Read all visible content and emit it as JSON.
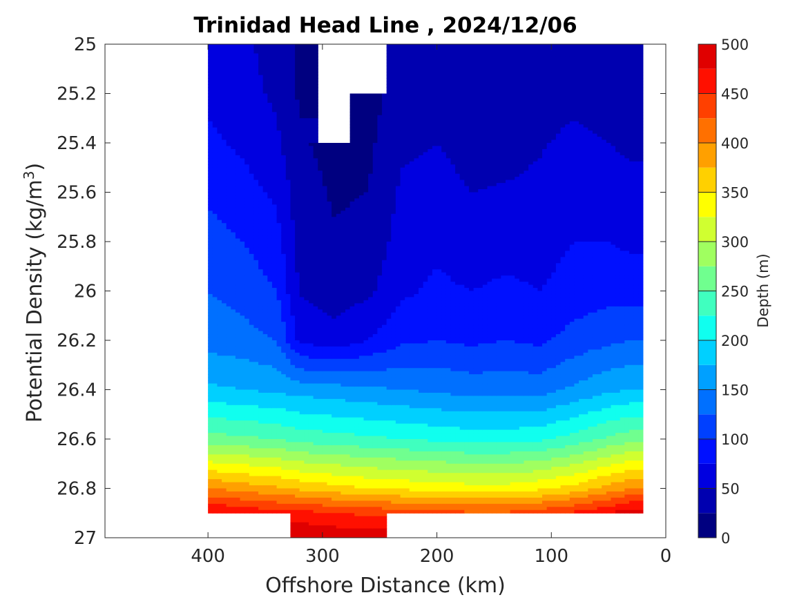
{
  "chart_data": {
    "type": "contour",
    "title": "Trinidad Head Line , 2024/12/06",
    "xlabel": "Offshore Distance (km)",
    "ylabel": "Potential Density (kg/m3)",
    "ylabel_base": "Potential Density (kg/m",
    "ylabel_sup": "3",
    "ylabel_tail": ")",
    "xlim": [
      490,
      0
    ],
    "x_reversed": true,
    "ylim": [
      25,
      27
    ],
    "y_reversed": true,
    "x_ticks": [
      400,
      300,
      200,
      100,
      0
    ],
    "x_tick_labels": [
      "400",
      "300",
      "200",
      "100",
      "0"
    ],
    "y_ticks": [
      25,
      25.2,
      25.4,
      25.6,
      25.8,
      26,
      26.2,
      26.4,
      26.6,
      26.8,
      27
    ],
    "y_tick_labels": [
      "25",
      "25.2",
      "25.4",
      "25.6",
      "25.8",
      "26",
      "26.2",
      "26.4",
      "26.6",
      "26.8",
      "27"
    ],
    "colorbar": {
      "label": "Depth (m)",
      "min": 0,
      "max": 500,
      "step": 25,
      "ticks": [
        0,
        50,
        100,
        150,
        200,
        250,
        300,
        350,
        400,
        450,
        500
      ],
      "tick_labels": [
        "0",
        "50",
        "100",
        "150",
        "200",
        "250",
        "300",
        "350",
        "400",
        "450",
        "500"
      ],
      "colormap": "jet",
      "colors": [
        "#000080",
        "#0000b0",
        "#0000e0",
        "#0010ff",
        "#0040ff",
        "#0070ff",
        "#00a0ff",
        "#00d0ff",
        "#10ffef",
        "#40ffbf",
        "#70ff8f",
        "#a0ff60",
        "#d0ff30",
        "#ffff00",
        "#ffd000",
        "#ffa000",
        "#ff7000",
        "#ff4000",
        "#ff1000",
        "#e00000"
      ]
    },
    "x_stations_km": [
      400,
      390,
      370,
      350,
      330,
      310,
      290,
      270,
      250,
      230,
      210,
      190,
      170,
      150,
      130,
      110,
      90,
      70,
      50,
      30,
      20
    ],
    "isopycnal_depths_m": {
      "y_levels": [
        25.0,
        25.2,
        25.4,
        25.6,
        25.8,
        26.0,
        26.2,
        26.4,
        26.6,
        26.8,
        26.9,
        27.0
      ],
      "series": [
        {
          "x": 400,
          "depth": [
            60,
            70,
            80,
            95,
            110,
            125,
            140,
            180,
            260,
            400,
            480,
            null
          ]
        },
        {
          "x": 370,
          "depth": [
            55,
            60,
            70,
            85,
            100,
            115,
            135,
            175,
            255,
            390,
            470,
            null
          ]
        },
        {
          "x": 340,
          "depth": [
            40,
            45,
            55,
            70,
            85,
            100,
            125,
            170,
            250,
            380,
            460,
            null
          ]
        },
        {
          "x": 320,
          "depth": [
            20,
            22,
            28,
            35,
            40,
            48,
            70,
            165,
            240,
            370,
            460,
            500
          ]
        },
        {
          "x": 290,
          "depth": [
            null,
            null,
            18,
            22,
            28,
            38,
            60,
            160,
            235,
            360,
            450,
            495
          ]
        },
        {
          "x": 260,
          "depth": [
            null,
            15,
            20,
            25,
            32,
            45,
            75,
            155,
            230,
            350,
            445,
            490
          ]
        },
        {
          "x": 230,
          "depth": [
            30,
            38,
            45,
            55,
            62,
            70,
            95,
            150,
            225,
            345,
            440,
            null
          ]
        },
        {
          "x": 200,
          "depth": [
            35,
            40,
            50,
            60,
            70,
            80,
            100,
            145,
            220,
            340,
            435,
            null
          ]
        },
        {
          "x": 170,
          "depth": [
            30,
            35,
            40,
            50,
            60,
            75,
            95,
            140,
            215,
            335,
            430,
            null
          ]
        },
        {
          "x": 140,
          "depth": [
            30,
            35,
            42,
            52,
            65,
            80,
            100,
            140,
            215,
            335,
            430,
            null
          ]
        },
        {
          "x": 110,
          "depth": [
            35,
            40,
            48,
            55,
            65,
            75,
            95,
            140,
            220,
            345,
            440,
            null
          ]
        },
        {
          "x": 80,
          "depth": [
            38,
            45,
            55,
            65,
            75,
            85,
            110,
            155,
            235,
            360,
            455,
            null
          ]
        },
        {
          "x": 50,
          "depth": [
            30,
            40,
            50,
            62,
            75,
            90,
            120,
            170,
            255,
            385,
            475,
            null
          ]
        },
        {
          "x": 30,
          "depth": [
            28,
            35,
            45,
            58,
            70,
            90,
            125,
            175,
            265,
            400,
            490,
            null
          ]
        }
      ]
    }
  }
}
